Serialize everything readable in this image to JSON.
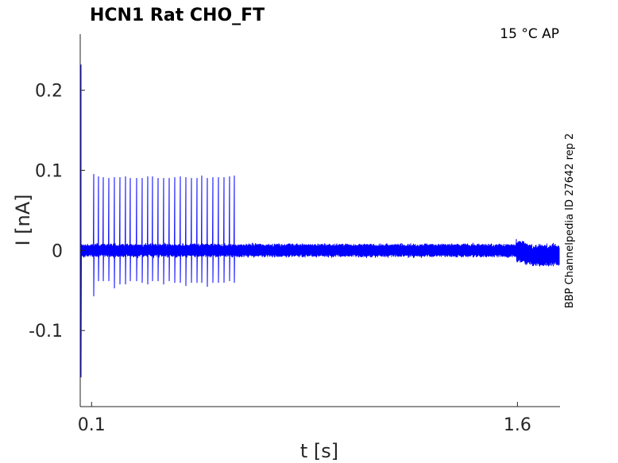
{
  "chart_data": {
    "type": "line",
    "title": "HCN1  Rat  CHO_FT",
    "annotation": "15 °C  AP",
    "side_label": "BBP Channelpedia ID 27642 rep 2",
    "xlabel": "t [s]",
    "ylabel": "I [nA]",
    "xlim": [
      0.06,
      1.75
    ],
    "ylim": [
      -0.195,
      0.27
    ],
    "xticks": [
      {
        "value": 0.1,
        "label": "0.1"
      },
      {
        "value": 1.6,
        "label": "1.6"
      }
    ],
    "yticks": [
      {
        "value": 0.2,
        "label": "0.2"
      },
      {
        "value": 0.1,
        "label": "0.1"
      },
      {
        "value": 0,
        "label": "0"
      },
      {
        "value": -0.1,
        "label": "-0.1"
      }
    ],
    "series_color": "#0000ff",
    "baseline": 0.0,
    "noise_amplitude": 0.006,
    "stim_start": 0.063,
    "stim_end": 1.596,
    "initial_transient": {
      "t": 0.063,
      "peak": 0.232,
      "trough": -0.158
    },
    "spikes": [
      {
        "t": 0.107,
        "peak": 0.095,
        "trough": -0.057
      },
      {
        "t": 0.125,
        "peak": 0.092,
        "trough": -0.038
      },
      {
        "t": 0.142,
        "peak": 0.091,
        "trough": -0.038
      },
      {
        "t": 0.16,
        "peak": 0.09,
        "trough": -0.038
      },
      {
        "t": 0.18,
        "peak": 0.091,
        "trough": -0.047
      },
      {
        "t": 0.2,
        "peak": 0.091,
        "trough": -0.042
      },
      {
        "t": 0.22,
        "peak": 0.092,
        "trough": -0.042
      },
      {
        "t": 0.237,
        "peak": 0.09,
        "trough": -0.038
      },
      {
        "t": 0.258,
        "peak": 0.09,
        "trough": -0.038
      },
      {
        "t": 0.278,
        "peak": 0.09,
        "trough": -0.04
      },
      {
        "t": 0.297,
        "peak": 0.092,
        "trough": -0.042
      },
      {
        "t": 0.315,
        "peak": 0.092,
        "trough": -0.038
      },
      {
        "t": 0.334,
        "peak": 0.09,
        "trough": -0.038
      },
      {
        "t": 0.353,
        "peak": 0.09,
        "trough": -0.042
      },
      {
        "t": 0.373,
        "peak": 0.09,
        "trough": -0.038
      },
      {
        "t": 0.393,
        "peak": 0.091,
        "trough": -0.04
      },
      {
        "t": 0.412,
        "peak": 0.092,
        "trough": -0.04
      },
      {
        "t": 0.432,
        "peak": 0.091,
        "trough": -0.044
      },
      {
        "t": 0.452,
        "peak": 0.09,
        "trough": -0.04
      },
      {
        "t": 0.471,
        "peak": 0.09,
        "trough": -0.04
      },
      {
        "t": 0.489,
        "peak": 0.093,
        "trough": -0.04
      },
      {
        "t": 0.508,
        "peak": 0.09,
        "trough": -0.045
      },
      {
        "t": 0.528,
        "peak": 0.091,
        "trough": -0.04
      },
      {
        "t": 0.547,
        "peak": 0.091,
        "trough": -0.04
      },
      {
        "t": 0.566,
        "peak": 0.091,
        "trough": -0.04
      },
      {
        "t": 0.585,
        "peak": 0.092,
        "trough": -0.038
      },
      {
        "t": 0.604,
        "peak": 0.093,
        "trough": -0.04
      }
    ]
  }
}
